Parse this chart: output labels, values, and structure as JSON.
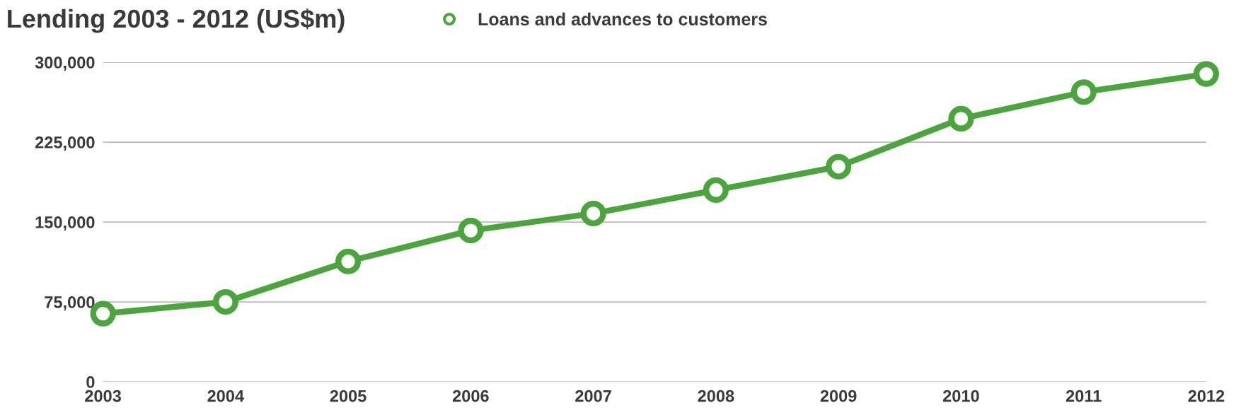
{
  "chart_data": {
    "type": "line",
    "title": "Lending 2003 - 2012 (US$m)",
    "categories": [
      "2003",
      "2004",
      "2005",
      "2006",
      "2007",
      "2008",
      "2009",
      "2010",
      "2011",
      "2012"
    ],
    "series": [
      {
        "name": "Loans and advances to customers",
        "color": "#4aa63c",
        "values": [
          64000,
          75000,
          113000,
          142000,
          158000,
          180000,
          202000,
          247000,
          272000,
          289000
        ]
      }
    ],
    "ylim": [
      0,
      300000
    ],
    "yticks": [
      0,
      {
        "value": 75000,
        "label": "75,000"
      },
      {
        "value": 150000,
        "label": "150,000"
      },
      {
        "value": 225000,
        "label": "225,000"
      },
      {
        "value": 300000,
        "label": "300,000"
      }
    ],
    "grid": "y",
    "legend": "top",
    "marker": "circle",
    "line_style": "solid"
  }
}
